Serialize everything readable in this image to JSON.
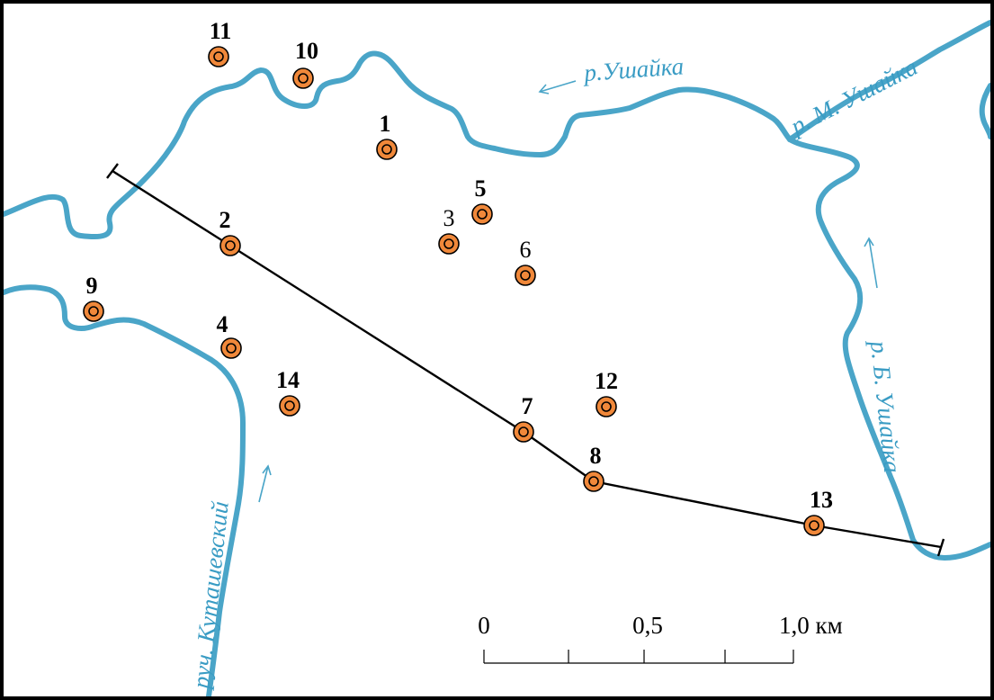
{
  "map": {
    "river_labels": {
      "ushaika": "р.Ушайка",
      "m_ushaika": "р. М. Ушайка",
      "b_ushaika": "р. Б. Ушайка",
      "kutashevsky": "руч. Куташевский"
    },
    "wells": [
      {
        "id": "1",
        "bold": true
      },
      {
        "id": "2",
        "bold": true
      },
      {
        "id": "3",
        "bold": false
      },
      {
        "id": "4",
        "bold": true
      },
      {
        "id": "5",
        "bold": true
      },
      {
        "id": "6",
        "bold": false
      },
      {
        "id": "7",
        "bold": true
      },
      {
        "id": "8",
        "bold": true
      },
      {
        "id": "9",
        "bold": true
      },
      {
        "id": "10",
        "bold": true
      },
      {
        "id": "11",
        "bold": true
      },
      {
        "id": "12",
        "bold": true
      },
      {
        "id": "13",
        "bold": true
      },
      {
        "id": "14",
        "bold": true
      }
    ],
    "scale_bar": {
      "label_0": "0",
      "label_mid": "0,5",
      "label_end": "1,0 км"
    },
    "colors": {
      "river": "#4aa5c8",
      "well_fill": "#f0883a",
      "frame": "#000000"
    }
  }
}
